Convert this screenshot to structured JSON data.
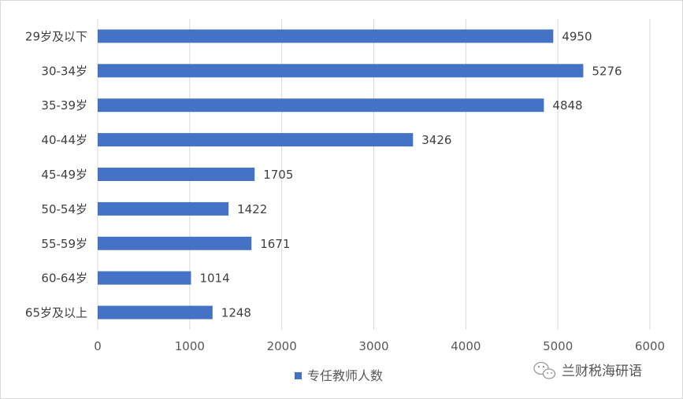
{
  "chart_data": {
    "type": "bar",
    "orientation": "horizontal",
    "categories": [
      "29岁及以下",
      "30-34岁",
      "35-39岁",
      "40-44岁",
      "45-49岁",
      "50-54岁",
      "55-59岁",
      "60-64岁",
      "65岁及以上"
    ],
    "series": [
      {
        "name": "专任教师人数",
        "values": [
          4950,
          5276,
          4848,
          3426,
          1705,
          1422,
          1671,
          1014,
          1248
        ],
        "color": "#4472c4"
      }
    ],
    "xlim": [
      0,
      6000
    ],
    "xticks": [
      "0",
      "1000",
      "2000",
      "3000",
      "4000",
      "5000",
      "6000"
    ],
    "grid": true,
    "legend_position": "bottom",
    "data_labels": true
  },
  "watermark": {
    "text": "兰财税海研语",
    "icon": "wechat-icon"
  }
}
